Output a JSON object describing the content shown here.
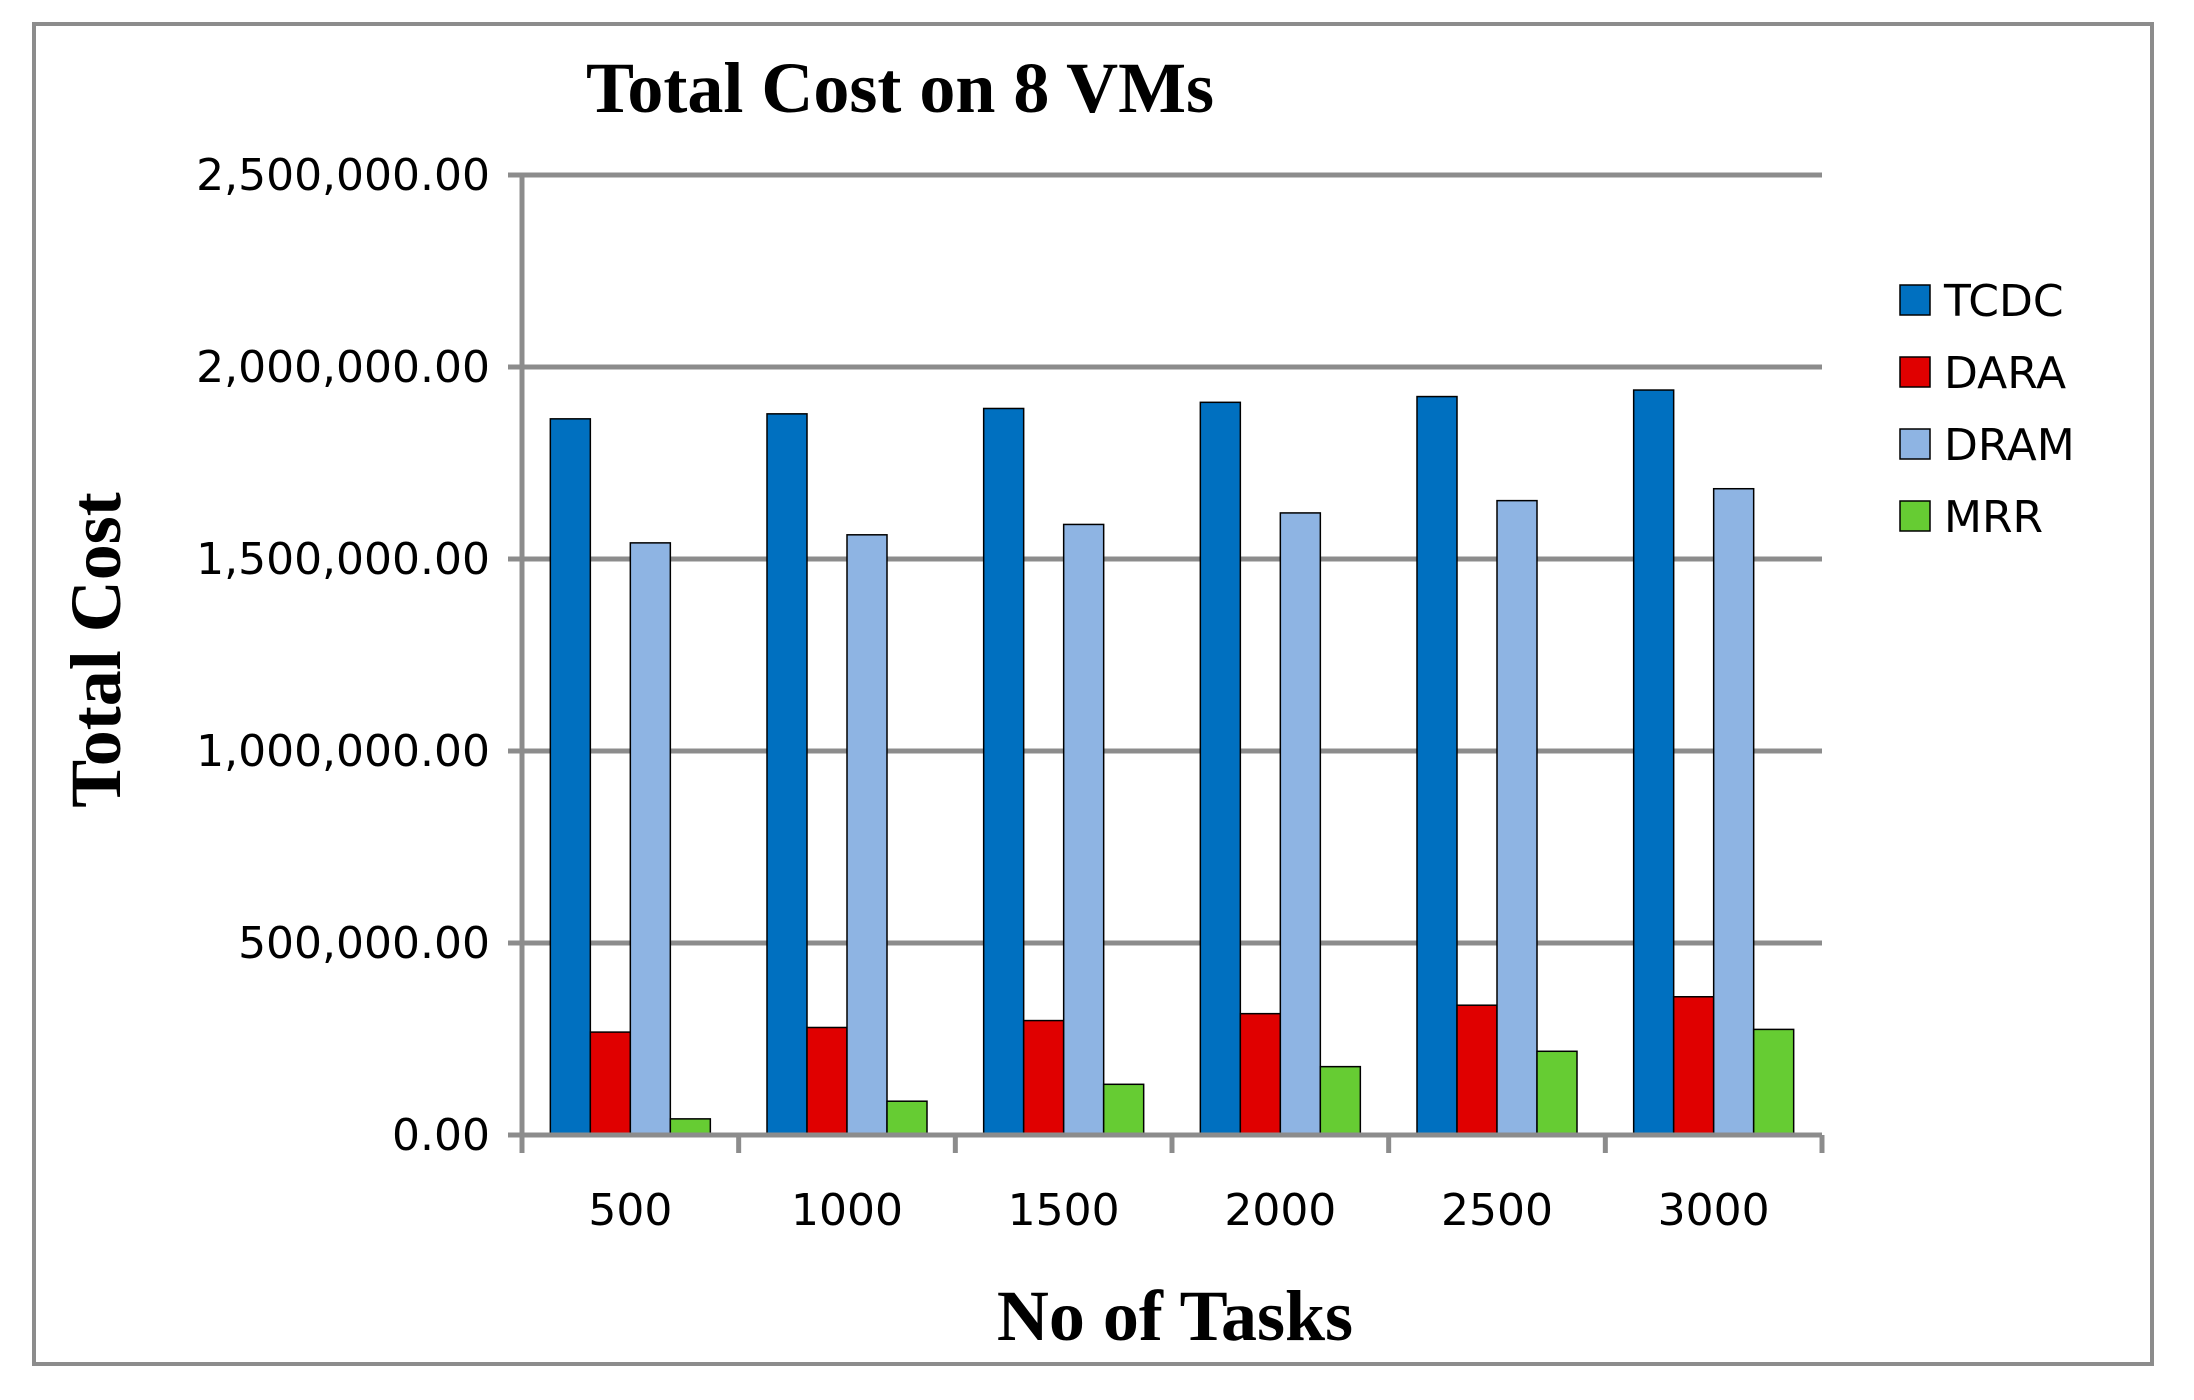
{
  "chart_data": {
    "type": "bar",
    "title": "Total Cost on 8 VMs",
    "xlabel": "No of Tasks",
    "ylabel": "Total Cost",
    "categories": [
      "500",
      "1000",
      "1500",
      "2000",
      "2500",
      "3000"
    ],
    "series": [
      {
        "name": "TCDC",
        "color": "#0070c0",
        "values": [
          1865000,
          1878000,
          1892000,
          1908000,
          1923000,
          1940000
        ]
      },
      {
        "name": "DARA",
        "color": "#e00000",
        "values": [
          268000,
          280000,
          298000,
          316000,
          338000,
          360000
        ]
      },
      {
        "name": "DRAM",
        "color": "#8eb4e3",
        "values": [
          1542000,
          1563000,
          1590000,
          1620000,
          1652000,
          1683000
        ]
      },
      {
        "name": "MRR",
        "color": "#66cc33",
        "values": [
          42000,
          88000,
          132000,
          178000,
          218000,
          275000
        ]
      }
    ],
    "ylim": [
      0,
      2500000
    ],
    "yticks": [
      "0.00",
      "500,000.00",
      "1,000,000.00",
      "1,500,000.00",
      "2,000,000.00",
      "2,500,000.00"
    ],
    "ytick_values": [
      0,
      500000,
      1000000,
      1500000,
      2000000,
      2500000
    ],
    "grid": true,
    "legend_position": "right"
  }
}
